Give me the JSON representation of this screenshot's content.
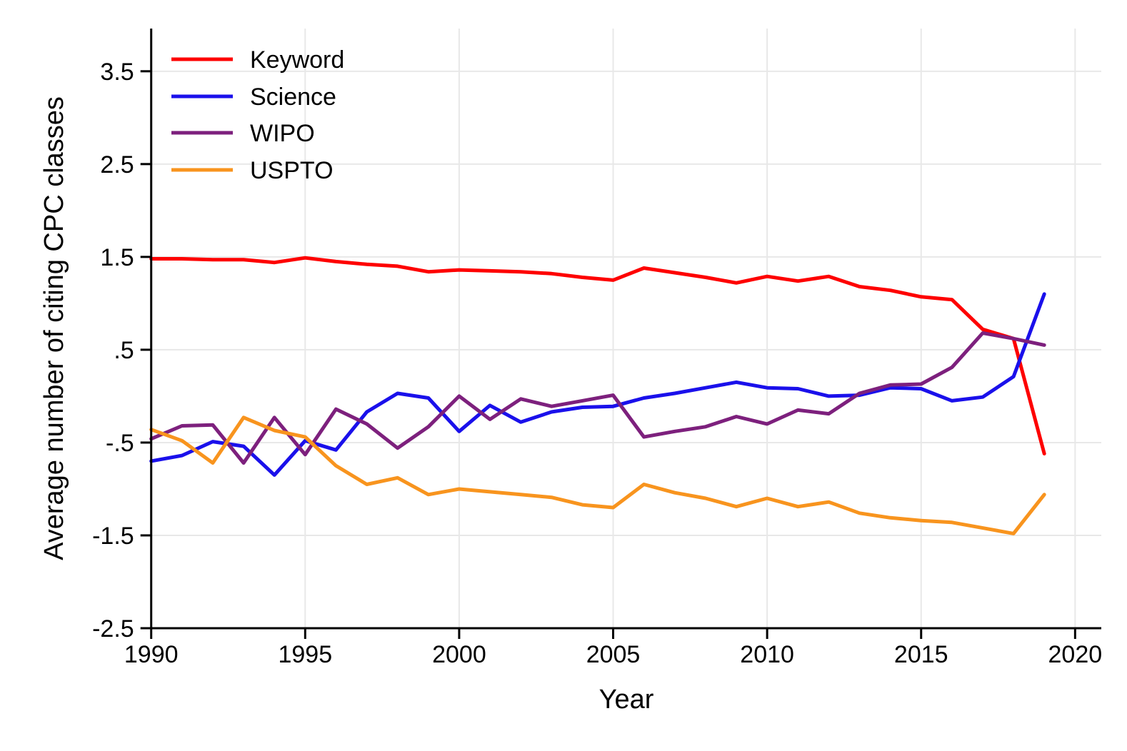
{
  "figure": {
    "background": "#ffffff"
  },
  "chart_data": {
    "type": "line",
    "title": "",
    "xlabel": "Year",
    "ylabel": "Average number of citing CPC classes",
    "x": [
      1990,
      1991,
      1992,
      1993,
      1994,
      1995,
      1996,
      1997,
      1998,
      1999,
      2000,
      2001,
      2002,
      2003,
      2004,
      2005,
      2006,
      2007,
      2008,
      2009,
      2010,
      2011,
      2012,
      2013,
      2014,
      2015,
      2016,
      2017,
      2018,
      2019
    ],
    "series": [
      {
        "name": "Keyword",
        "color": "#fe0000",
        "values": [
          1.48,
          1.48,
          1.47,
          1.47,
          1.44,
          1.49,
          1.45,
          1.42,
          1.4,
          1.34,
          1.36,
          1.35,
          1.34,
          1.32,
          1.28,
          1.25,
          1.38,
          1.33,
          1.28,
          1.22,
          1.29,
          1.24,
          1.29,
          1.18,
          1.14,
          1.07,
          1.04,
          0.72,
          0.62,
          -0.62
        ]
      },
      {
        "name": "Science",
        "color": "#1a10eb",
        "values": [
          -0.7,
          -0.64,
          -0.49,
          -0.54,
          -0.85,
          -0.48,
          -0.58,
          -0.17,
          0.03,
          -0.02,
          -0.38,
          -0.1,
          -0.28,
          -0.17,
          -0.12,
          -0.11,
          -0.02,
          0.03,
          0.09,
          0.15,
          0.09,
          0.08,
          0.0,
          0.01,
          0.09,
          0.08,
          -0.05,
          -0.01,
          0.21,
          1.1
        ]
      },
      {
        "name": "WIPO",
        "color": "#7d207d",
        "values": [
          -0.46,
          -0.32,
          -0.31,
          -0.72,
          -0.23,
          -0.63,
          -0.14,
          -0.3,
          -0.56,
          -0.33,
          0.0,
          -0.25,
          -0.03,
          -0.11,
          -0.05,
          0.01,
          -0.44,
          -0.38,
          -0.33,
          -0.22,
          -0.3,
          -0.15,
          -0.19,
          0.03,
          0.12,
          0.13,
          0.31,
          0.68,
          0.62,
          0.55
        ]
      },
      {
        "name": "USPTO",
        "color": "#f8941e",
        "values": [
          -0.36,
          -0.48,
          -0.72,
          -0.23,
          -0.37,
          -0.44,
          -0.75,
          -0.95,
          -0.88,
          -1.06,
          -1.0,
          -1.03,
          -1.06,
          -1.09,
          -1.17,
          -1.2,
          -0.95,
          -1.04,
          -1.1,
          -1.19,
          -1.1,
          -1.19,
          -1.14,
          -1.26,
          -1.31,
          -1.34,
          -1.36,
          -1.42,
          -1.48,
          -1.06
        ]
      }
    ],
    "xlim": [
      1990,
      2020.85
    ],
    "ylim": [
      -2.5,
      3.96
    ],
    "xticks": [
      {
        "value": 1990,
        "label": "1990"
      },
      {
        "value": 1995,
        "label": "1995"
      },
      {
        "value": 2000,
        "label": "2000"
      },
      {
        "value": 2005,
        "label": "2005"
      },
      {
        "value": 2010,
        "label": "2010"
      },
      {
        "value": 2015,
        "label": "2015"
      },
      {
        "value": 2020,
        "label": "2020"
      }
    ],
    "yticks": [
      {
        "value": 3.5,
        "label": "3.5"
      },
      {
        "value": 2.5,
        "label": "2.5"
      },
      {
        "value": 1.5,
        "label": "1.5"
      },
      {
        "value": 0.5,
        "label": ".5"
      },
      {
        "value": -0.5,
        "label": "-.5"
      },
      {
        "value": -1.5,
        "label": "-1.5"
      },
      {
        "value": -2.5,
        "label": "-2.5"
      }
    ],
    "grid": true,
    "grid_color": "#e8e8e8",
    "axis_color": "#000000",
    "legend_position": "top-left",
    "line_width": 5
  }
}
